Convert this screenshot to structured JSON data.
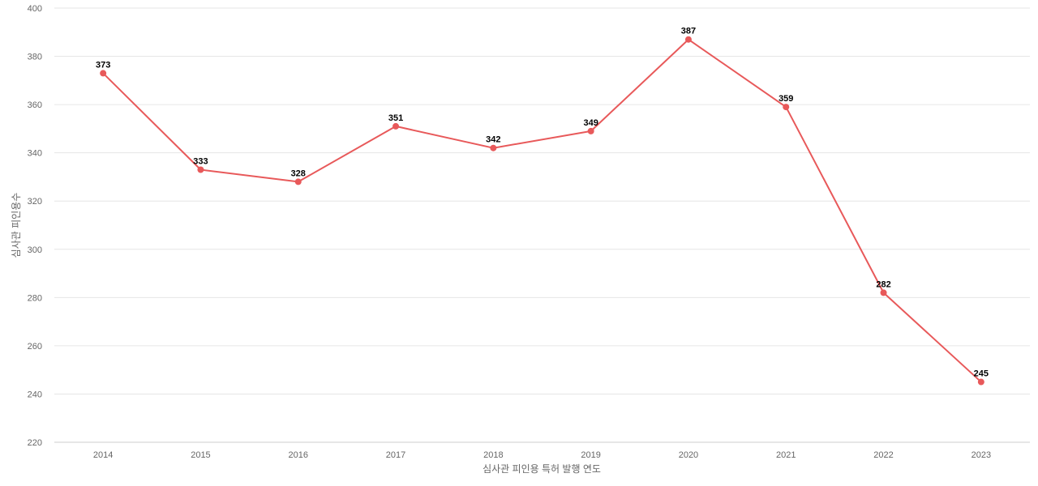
{
  "chart_data": {
    "type": "line",
    "title": "",
    "xlabel": "심사관 피인용 특허 발행 연도",
    "ylabel": "심사관 피인용수",
    "categories": [
      "2014",
      "2015",
      "2016",
      "2017",
      "2018",
      "2019",
      "2020",
      "2021",
      "2022",
      "2023"
    ],
    "series": [
      {
        "values": [
          373,
          333,
          328,
          351,
          342,
          349,
          387,
          359,
          282,
          245
        ]
      }
    ],
    "ylim": [
      220,
      400
    ],
    "yticks": [
      220,
      240,
      260,
      280,
      300,
      320,
      340,
      360,
      380,
      400
    ],
    "grid": true,
    "data_labels": true
  },
  "colors": {
    "series": "#e8595a",
    "grid": "#e6e6e6",
    "text": "#666666"
  }
}
